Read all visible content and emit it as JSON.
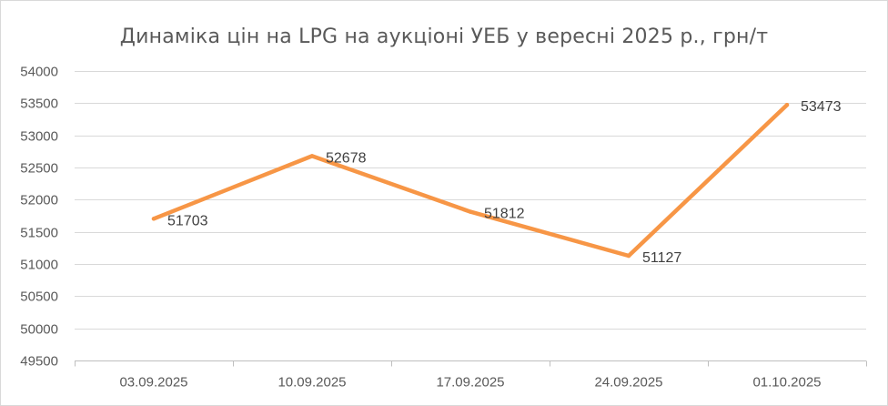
{
  "chart_data": {
    "type": "line",
    "title": "Динаміка цін на LPG на аукціоні УЕБ у вересні 2025 р., грн/т",
    "xlabel": "",
    "ylabel": "",
    "categories": [
      "03.09.2025",
      "10.09.2025",
      "17.09.2025",
      "24.09.2025",
      "01.10.2025"
    ],
    "series": [
      {
        "values": [
          51703,
          52678,
          51812,
          51127,
          53473
        ],
        "color": "#f79646"
      }
    ],
    "data_labels": [
      "51703",
      "52678",
      "51812",
      "51127",
      "53473"
    ],
    "ylim": [
      49500,
      54000
    ],
    "y_ticks": [
      49500,
      50000,
      50500,
      51000,
      51500,
      52000,
      52500,
      53000,
      53500,
      54000
    ],
    "y_tick_labels": [
      "49500",
      "50000",
      "50500",
      "51000",
      "51500",
      "52000",
      "52500",
      "53000",
      "53500",
      "54000"
    ],
    "grid": true,
    "legend": "none"
  }
}
